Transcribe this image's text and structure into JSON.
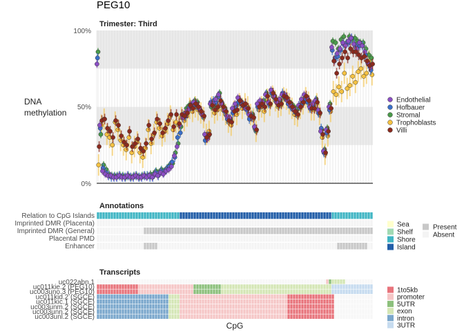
{
  "title": "PEG10",
  "methylation": {
    "panel_title": "Trimester: Third",
    "ylabel_line1": "DNA",
    "ylabel_line2": "methylation",
    "yticks": [
      "0%",
      "50%",
      "100%"
    ],
    "legend": [
      {
        "name": "Endothelial",
        "color": "#8b4fc4"
      },
      {
        "name": "Hofbauer",
        "color": "#3a6fc9"
      },
      {
        "name": "Stromal",
        "color": "#4a9a4a"
      },
      {
        "name": "Trophoblasts",
        "color": "#f5c242"
      },
      {
        "name": "Villi",
        "color": "#8b2a1e"
      }
    ]
  },
  "annotations": {
    "panel_title": "Annotations",
    "rows": [
      "Relation to CpG Islands",
      "Imprinted DMR (Placenta)",
      "Imprinted DMR (General)",
      "Placental PMD",
      "Enhancer"
    ],
    "cpg_legend": [
      {
        "name": "Sea",
        "color": "#ffffcc"
      },
      {
        "name": "Shelf",
        "color": "#a1dab4"
      },
      {
        "name": "Shore",
        "color": "#41b6c4"
      },
      {
        "name": "Island",
        "color": "#225ea8"
      }
    ],
    "presence_legend": [
      {
        "name": "Present",
        "color": "#c8c8c8"
      },
      {
        "name": "Absent",
        "color": "#f4f4f4"
      }
    ]
  },
  "transcripts": {
    "panel_title": "Transcripts",
    "rows": [
      "uc022abn.1",
      "uc011kie.2 (PEG10)",
      "uc003uno.3 (PEG10)",
      "uc011kid.2 (SGCE)",
      "uc011kic.1 (SGCE)",
      "uc003unm.2 (SGCE)",
      "uc003unn.2 (SGCE)",
      "uc003unl.2 (SGCE)"
    ],
    "legend": [
      {
        "name": "1to5kb",
        "color": "#e8747c"
      },
      {
        "name": "promoter",
        "color": "#f5c6c6"
      },
      {
        "name": "5UTR",
        "color": "#8cc07c"
      },
      {
        "name": "exon",
        "color": "#d4e6b5"
      },
      {
        "name": "intron",
        "color": "#7ba7cc"
      },
      {
        "name": "3UTR",
        "color": "#c6dbef"
      }
    ],
    "xlabel": "CpG"
  },
  "chart_data": {
    "type": "scatter",
    "title": "PEG10",
    "subtitle": "Trimester: Third",
    "xlabel": "CpG",
    "ylabel": "DNA methylation",
    "ylim": [
      0,
      1
    ],
    "n_cpgs": 100,
    "grid": "vertical lines per CpG; shaded bands 0.25–0.50 and 0.75–1.00",
    "legend_position": "right",
    "series": [
      {
        "name": "Endothelial",
        "values": [
          0.78,
          0.38,
          0.08,
          0.06,
          0.05,
          0.05,
          0.04,
          0.04,
          0.05,
          0.04,
          0.04,
          0.05,
          0.04,
          0.04,
          0.05,
          0.04,
          0.04,
          0.05,
          0.04,
          0.05,
          0.04,
          0.06,
          0.05,
          0.07,
          0.06,
          0.08,
          0.09,
          0.11,
          0.18,
          0.24,
          0.38,
          0.43,
          0.46,
          0.48,
          0.51,
          0.53,
          0.52,
          0.49,
          0.45,
          0.32,
          0.29,
          0.52,
          0.52,
          0.55,
          0.58,
          0.52,
          0.48,
          0.44,
          0.43,
          0.49,
          0.52,
          0.56,
          0.54,
          0.51,
          0.49,
          0.45,
          0.44,
          0.37,
          0.52,
          0.54,
          0.53,
          0.58,
          0.53,
          0.61,
          0.57,
          0.53,
          0.55,
          0.58,
          0.58,
          0.54,
          0.51,
          0.49,
          0.47,
          0.51,
          0.55,
          0.58,
          0.56,
          0.5,
          0.52,
          0.54,
          0.48,
          0.34,
          0.21,
          0.35,
          0.5,
          0.89,
          0.8,
          0.85,
          0.88,
          0.92,
          0.9,
          0.93,
          0.95,
          0.91,
          0.88,
          0.92,
          0.9,
          0.86,
          0.79,
          0.76
        ]
      },
      {
        "name": "Hofbauer",
        "values": [
          0.82,
          0.36,
          0.1,
          0.07,
          0.05,
          0.04,
          0.04,
          0.04,
          0.05,
          0.04,
          0.04,
          0.05,
          0.04,
          0.04,
          0.05,
          0.04,
          0.04,
          0.05,
          0.05,
          0.04,
          0.04,
          0.07,
          0.05,
          0.08,
          0.07,
          0.09,
          0.11,
          0.14,
          0.17,
          0.3,
          0.33,
          0.43,
          0.44,
          0.49,
          0.5,
          0.51,
          0.51,
          0.48,
          0.45,
          0.28,
          0.31,
          0.53,
          0.54,
          0.53,
          0.57,
          0.53,
          0.47,
          0.42,
          0.42,
          0.46,
          0.5,
          0.53,
          0.52,
          0.51,
          0.48,
          0.42,
          0.43,
          0.36,
          0.5,
          0.51,
          0.52,
          0.58,
          0.52,
          0.59,
          0.56,
          0.53,
          0.52,
          0.59,
          0.56,
          0.52,
          0.5,
          0.48,
          0.46,
          0.51,
          0.52,
          0.55,
          0.53,
          0.49,
          0.51,
          0.54,
          0.46,
          0.36,
          0.2,
          0.33,
          0.48,
          0.87,
          0.82,
          0.83,
          0.87,
          0.91,
          0.91,
          0.92,
          0.95,
          0.91,
          0.89,
          0.9,
          0.9,
          0.84,
          0.78,
          0.74
        ]
      },
      {
        "name": "Stromal",
        "values": [
          0.86,
          0.32,
          0.12,
          0.09,
          0.06,
          0.05,
          0.05,
          0.05,
          0.05,
          0.05,
          0.04,
          0.05,
          0.04,
          0.05,
          0.05,
          0.04,
          0.05,
          0.05,
          0.05,
          0.06,
          0.06,
          0.08,
          0.07,
          0.09,
          0.08,
          0.1,
          0.12,
          0.13,
          0.2,
          0.26,
          0.37,
          0.45,
          0.49,
          0.51,
          0.52,
          0.54,
          0.53,
          0.48,
          0.44,
          0.31,
          0.31,
          0.5,
          0.51,
          0.56,
          0.59,
          0.52,
          0.49,
          0.43,
          0.42,
          0.48,
          0.51,
          0.55,
          0.53,
          0.5,
          0.48,
          0.43,
          0.45,
          0.35,
          0.51,
          0.53,
          0.54,
          0.59,
          0.52,
          0.6,
          0.57,
          0.52,
          0.54,
          0.57,
          0.57,
          0.53,
          0.52,
          0.5,
          0.48,
          0.5,
          0.54,
          0.57,
          0.55,
          0.51,
          0.5,
          0.55,
          0.47,
          0.35,
          0.22,
          0.36,
          0.52,
          0.93,
          0.92,
          0.88,
          0.94,
          0.96,
          0.92,
          0.96,
          0.94,
          0.95,
          0.93,
          0.92,
          0.92,
          0.88,
          0.84,
          0.82
        ]
      },
      {
        "name": "Trophoblasts",
        "values": [
          0.12,
          0.38,
          0.42,
          0.32,
          0.3,
          0.25,
          0.4,
          0.35,
          0.28,
          0.25,
          0.22,
          0.3,
          0.2,
          0.24,
          0.27,
          0.2,
          0.17,
          0.23,
          0.35,
          0.26,
          0.32,
          0.4,
          0.36,
          0.31,
          0.34,
          0.39,
          0.44,
          0.35,
          0.4,
          0.38,
          0.43,
          0.41,
          0.44,
          0.49,
          0.47,
          0.5,
          0.48,
          0.46,
          0.43,
          0.32,
          0.34,
          0.5,
          0.46,
          0.48,
          0.51,
          0.48,
          0.45,
          0.4,
          0.38,
          0.47,
          0.45,
          0.52,
          0.49,
          0.52,
          0.5,
          0.45,
          0.42,
          0.34,
          0.48,
          0.5,
          0.47,
          0.55,
          0.51,
          0.57,
          0.54,
          0.5,
          0.51,
          0.56,
          0.55,
          0.52,
          0.49,
          0.45,
          0.44,
          0.49,
          0.52,
          0.56,
          0.53,
          0.48,
          0.48,
          0.52,
          0.45,
          0.3,
          0.19,
          0.31,
          0.47,
          0.6,
          0.58,
          0.63,
          0.6,
          0.72,
          0.62,
          0.64,
          0.7,
          0.66,
          0.73,
          0.75,
          0.7,
          0.72,
          0.8,
          0.71
        ]
      },
      {
        "name": "Villi",
        "values": [
          0.24,
          0.41,
          0.42,
          0.36,
          0.34,
          0.3,
          0.41,
          0.38,
          0.31,
          0.27,
          0.25,
          0.34,
          0.24,
          0.26,
          0.29,
          0.23,
          0.21,
          0.26,
          0.38,
          0.29,
          0.33,
          0.42,
          0.39,
          0.33,
          0.36,
          0.41,
          0.45,
          0.37,
          0.45,
          0.39,
          0.45,
          0.44,
          0.46,
          0.51,
          0.49,
          0.52,
          0.5,
          0.47,
          0.44,
          0.3,
          0.32,
          0.51,
          0.48,
          0.5,
          0.54,
          0.5,
          0.47,
          0.41,
          0.4,
          0.47,
          0.48,
          0.54,
          0.51,
          0.52,
          0.49,
          0.44,
          0.43,
          0.35,
          0.5,
          0.52,
          0.5,
          0.57,
          0.52,
          0.59,
          0.55,
          0.51,
          0.52,
          0.57,
          0.56,
          0.53,
          0.5,
          0.47,
          0.45,
          0.5,
          0.53,
          0.57,
          0.54,
          0.49,
          0.49,
          0.53,
          0.46,
          0.32,
          0.2,
          0.34,
          0.49,
          0.8,
          0.72,
          0.78,
          0.82,
          0.86,
          0.82,
          0.88,
          0.86,
          0.86,
          0.84,
          0.82,
          0.83,
          0.8,
          0.77,
          0.78
        ]
      }
    ],
    "annotations": {
      "cpg_island_relation": "Shore (CpG 1–30), Island (31–85), Shore (86–100)",
      "imprinted_dmr_placenta": "absent",
      "imprinted_dmr_general": "present CpG 18–100",
      "placental_pmd": "absent",
      "enhancer": "present CpG 18–22 and 88–98"
    },
    "transcript_segments": {
      "uc022abn.1": [
        [
          "promoter",
          84,
          84
        ],
        [
          "5UTR",
          85,
          85
        ],
        [
          "exon",
          86,
          90
        ]
      ],
      "uc011kie.2 (PEG10)": [
        [
          "1to5kb",
          1,
          15
        ],
        [
          "promoter",
          16,
          35
        ],
        [
          "5UTR",
          36,
          45
        ],
        [
          "exon",
          46,
          85
        ],
        [
          "3UTR",
          86,
          100
        ]
      ],
      "uc003uno.3 (PEG10)": [
        [
          "1to5kb",
          1,
          15
        ],
        [
          "promoter",
          16,
          35
        ],
        [
          "5UTR",
          36,
          45
        ],
        [
          "exon",
          46,
          85
        ],
        [
          "3UTR",
          86,
          100
        ]
      ],
      "uc011kid.2 (SGCE)": [
        [
          "intron",
          1,
          26
        ],
        [
          "exon",
          27,
          30
        ],
        [
          "promoter",
          31,
          69
        ],
        [
          "1to5kb",
          70,
          86
        ]
      ],
      "uc011kic.1 (SGCE)": [
        [
          "intron",
          1,
          26
        ],
        [
          "exon",
          27,
          30
        ],
        [
          "promoter",
          31,
          69
        ],
        [
          "1to5kb",
          70,
          86
        ]
      ],
      "uc003unm.2 (SGCE)": [
        [
          "intron",
          1,
          26
        ],
        [
          "exon",
          27,
          30
        ],
        [
          "promoter",
          31,
          69
        ],
        [
          "1to5kb",
          70,
          86
        ]
      ],
      "uc003unn.2 (SGCE)": [
        [
          "intron",
          1,
          26
        ],
        [
          "exon",
          27,
          30
        ],
        [
          "promoter",
          31,
          69
        ],
        [
          "1to5kb",
          70,
          86
        ]
      ],
      "uc003unl.2 (SGCE)": [
        [
          "intron",
          1,
          26
        ],
        [
          "exon",
          27,
          30
        ],
        [
          "promoter",
          31,
          69
        ],
        [
          "1to5kb",
          70,
          86
        ]
      ]
    }
  }
}
